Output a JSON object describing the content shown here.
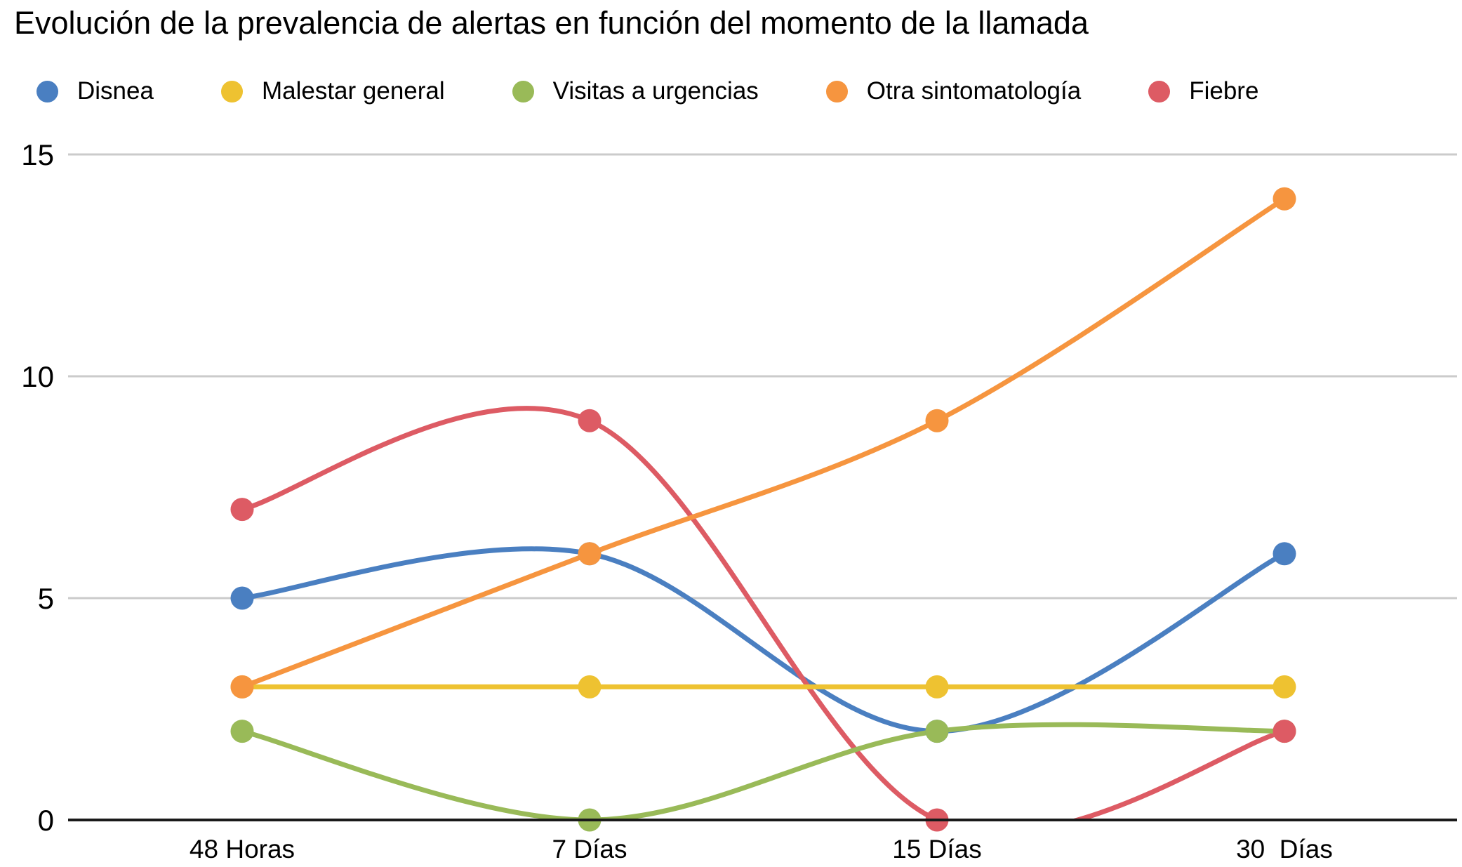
{
  "chart_data": {
    "type": "line",
    "title": "Evolución de la prevalencia de alertas en función del momento de la llamada",
    "line_style": "smooth",
    "legend_position": "top",
    "grid": true,
    "categories": [
      "48 Horas",
      "7 Días",
      "15 Días",
      "30  Días"
    ],
    "series": [
      {
        "name": "Disnea",
        "color": "#4a7fc1",
        "values": [
          5,
          6,
          2,
          6
        ]
      },
      {
        "name": "Malestar general",
        "color": "#eec231",
        "values": [
          3,
          3,
          3,
          3
        ]
      },
      {
        "name": "Visitas a urgencias",
        "color": "#99ba58",
        "values": [
          2,
          0,
          2,
          2
        ]
      },
      {
        "name": "Otra sintomatología",
        "color": "#f6953f",
        "values": [
          3,
          6,
          9,
          14
        ]
      },
      {
        "name": "Fiebre",
        "color": "#dd5b64",
        "values": [
          7,
          9,
          0,
          2
        ]
      }
    ],
    "xlabel": "",
    "ylabel": "",
    "y_ticks": [
      0,
      5,
      10,
      15
    ],
    "y_tick_labels": [
      "0",
      "5",
      "10",
      "15"
    ],
    "ylim": [
      0,
      15
    ],
    "grid_color": "#cbcbcb",
    "axis_color": "#1a1a1a",
    "text_color": "#000000"
  }
}
